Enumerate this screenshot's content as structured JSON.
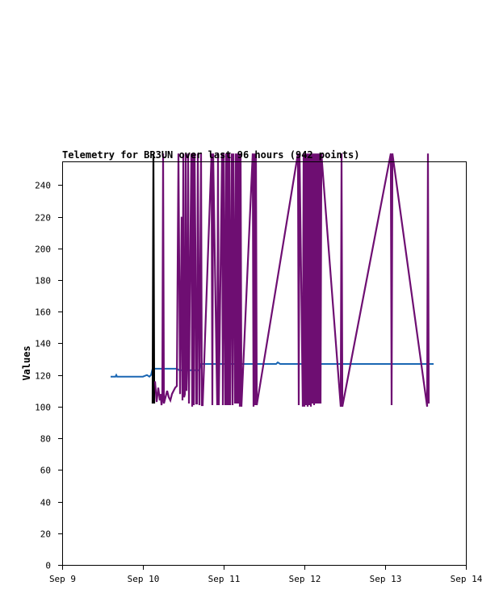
{
  "chart_data": {
    "type": "line",
    "title": "Telemetry for BR3UN over last 96 hours (942 points)",
    "ylabel": "Values",
    "xlabel": "",
    "ylim": [
      0,
      255
    ],
    "xlim": [
      "Sep 9",
      "Sep 14"
    ],
    "x_ticks": [
      "Sep 9",
      "Sep 10",
      "Sep 11",
      "Sep 12",
      "Sep 13",
      "Sep 14"
    ],
    "y_ticks": [
      0,
      20,
      40,
      60,
      80,
      100,
      120,
      140,
      160,
      180,
      200,
      220,
      240
    ],
    "grid": false,
    "legend": "none",
    "series": [
      {
        "color": "#1a66b3",
        "x": [
          9.6,
          9.66,
          9.67,
          9.68,
          10.0,
          10.05,
          10.08,
          10.1,
          10.12,
          10.15,
          10.25,
          10.3,
          10.42,
          10.45,
          10.5,
          10.7,
          10.72,
          10.75,
          11.2,
          11.65,
          11.67,
          11.7,
          12.45,
          12.7,
          13.0,
          13.4,
          13.6
        ],
        "values": [
          119,
          119,
          120,
          119,
          119,
          120,
          119,
          120,
          124,
          124,
          124,
          124,
          124,
          123,
          123,
          123,
          127,
          127,
          127,
          127,
          128,
          127,
          127,
          127,
          127,
          127,
          127
        ]
      },
      {
        "color": "#000000",
        "x": [
          10.12,
          10.13,
          10.14
        ],
        "values": [
          102,
          260,
          102
        ]
      },
      {
        "color": "#6e0e72",
        "x": [
          10.15,
          10.17,
          10.19,
          10.21,
          10.22,
          10.23,
          10.24,
          10.25,
          10.26,
          10.28,
          10.3,
          10.32,
          10.34,
          10.36,
          10.38,
          10.4,
          10.42,
          10.44,
          10.46,
          10.48,
          10.49,
          10.5,
          10.51,
          10.52,
          10.53,
          10.54,
          10.55,
          10.56,
          10.57,
          10.58,
          10.6,
          10.61,
          10.62,
          10.63,
          10.64,
          10.65,
          10.66,
          10.67,
          10.68,
          10.7,
          10.72,
          10.73,
          10.74,
          10.85,
          10.86,
          10.87,
          10.92,
          10.93,
          10.94,
          10.98,
          10.99,
          11.0,
          11.02,
          11.03,
          11.04,
          11.05,
          11.06,
          11.07,
          11.08,
          11.1,
          11.11,
          11.12,
          11.14,
          11.15,
          11.16,
          11.17,
          11.18,
          11.19,
          11.2,
          11.21,
          11.22,
          11.36,
          11.37,
          11.38,
          11.39,
          11.4,
          11.41,
          11.92,
          11.93,
          11.94,
          11.98,
          11.99,
          12.0,
          12.01,
          12.02,
          12.03,
          12.04,
          12.05,
          12.06,
          12.07,
          12.08,
          12.09,
          12.1,
          12.11,
          12.12,
          12.13,
          12.14,
          12.15,
          12.16,
          12.17,
          12.18,
          12.19,
          12.2,
          12.21,
          12.45,
          12.46,
          12.47,
          13.07,
          13.08,
          13.09,
          13.52,
          13.53,
          13.54
        ],
        "values": [
          116,
          103,
          112,
          104,
          108,
          101,
          104,
          260,
          102,
          106,
          110,
          106,
          104,
          108,
          110,
          112,
          113,
          260,
          108,
          220,
          104,
          260,
          106,
          108,
          260,
          110,
          130,
          260,
          102,
          165,
          260,
          100,
          260,
          101,
          260,
          200,
          102,
          102,
          260,
          101,
          260,
          101,
          101,
          260,
          101,
          260,
          101,
          260,
          101,
          260,
          101,
          260,
          101,
          260,
          101,
          260,
          101,
          260,
          101,
          260,
          101,
          260,
          102,
          260,
          102,
          260,
          102,
          260,
          100,
          260,
          100,
          260,
          100,
          260,
          101,
          260,
          101,
          260,
          101,
          260,
          100,
          260,
          100,
          260,
          101,
          260,
          100,
          260,
          101,
          260,
          100,
          260,
          102,
          260,
          101,
          260,
          102,
          260,
          102,
          260,
          102,
          260,
          102,
          260,
          100,
          260,
          100,
          260,
          101,
          260,
          100,
          260,
          102
        ]
      }
    ]
  }
}
